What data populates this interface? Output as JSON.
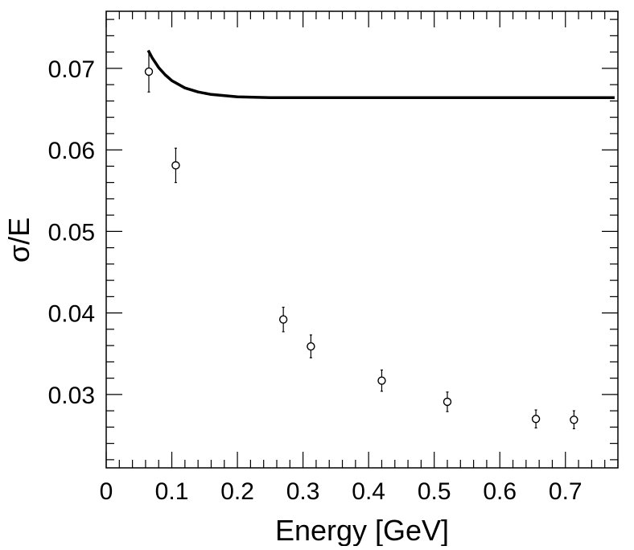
{
  "chart_data": {
    "type": "scatter",
    "xlabel": "Energy [GeV]",
    "ylabel": "σ/E",
    "xlim": [
      0,
      0.78
    ],
    "ylim": [
      0.021,
      0.077
    ],
    "x_ticks": [
      "0",
      "0.1",
      "0.2",
      "0.3",
      "0.4",
      "0.5",
      "0.6",
      "0.7"
    ],
    "y_ticks": [
      "0.03",
      "0.04",
      "0.05",
      "0.06",
      "0.07"
    ],
    "grid": false,
    "series": [
      {
        "kind": "points_with_error_bars",
        "marker": "open-circle",
        "points": [
          {
            "x": 0.065,
            "y": 0.0696,
            "err": 0.0025
          },
          {
            "x": 0.106,
            "y": 0.0581,
            "err": 0.0021
          },
          {
            "x": 0.27,
            "y": 0.0392,
            "err": 0.0015
          },
          {
            "x": 0.312,
            "y": 0.0359,
            "err": 0.0014
          },
          {
            "x": 0.42,
            "y": 0.0317,
            "err": 0.0013
          },
          {
            "x": 0.52,
            "y": 0.0291,
            "err": 0.0012
          },
          {
            "x": 0.655,
            "y": 0.027,
            "err": 0.0011
          },
          {
            "x": 0.713,
            "y": 0.0269,
            "err": 0.0011
          }
        ]
      },
      {
        "kind": "curve",
        "points": [
          {
            "x": 0.064,
            "y": 0.0722
          },
          {
            "x": 0.07,
            "y": 0.0713
          },
          {
            "x": 0.08,
            "y": 0.0701
          },
          {
            "x": 0.09,
            "y": 0.0692
          },
          {
            "x": 0.1,
            "y": 0.0685
          },
          {
            "x": 0.12,
            "y": 0.0676
          },
          {
            "x": 0.14,
            "y": 0.0671
          },
          {
            "x": 0.16,
            "y": 0.0668
          },
          {
            "x": 0.2,
            "y": 0.0665
          },
          {
            "x": 0.25,
            "y": 0.0664
          },
          {
            "x": 0.4,
            "y": 0.0664
          },
          {
            "x": 0.6,
            "y": 0.0664
          },
          {
            "x": 0.775,
            "y": 0.0664
          }
        ]
      }
    ]
  }
}
